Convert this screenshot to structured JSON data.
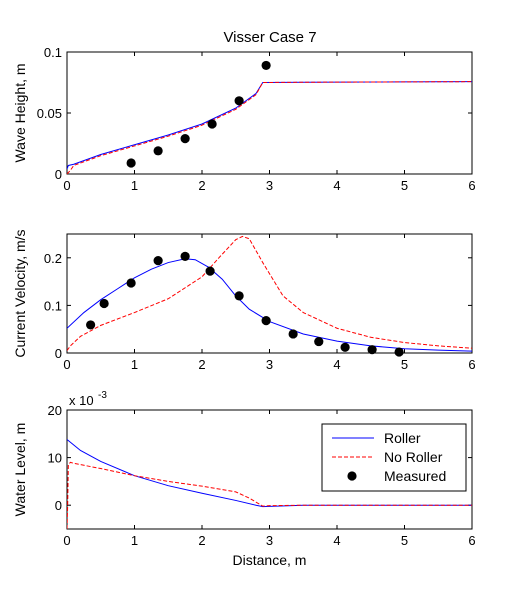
{
  "figure": {
    "title": "Visser Case 7"
  },
  "chart_data": [
    {
      "type": "line",
      "title": "Visser Case 7",
      "xlabel": "",
      "ylabel": "Wave Height, m",
      "xlim": [
        0,
        6
      ],
      "ylim": [
        0,
        0.1
      ],
      "xticks": [
        "0",
        "1",
        "2",
        "3",
        "4",
        "5",
        "6"
      ],
      "yticks": [
        "0",
        "0.05",
        "0.1"
      ],
      "grid": false,
      "series": [
        {
          "name": "Roller",
          "style": "solid",
          "color": "#0000ff",
          "x": [
            0,
            0.02,
            0.1,
            0.5,
            1.0,
            1.5,
            2.0,
            2.5,
            2.8,
            2.9,
            3.5,
            4.0,
            5.0,
            6.0
          ],
          "y": [
            0.004,
            0.007,
            0.008,
            0.016,
            0.024,
            0.032,
            0.041,
            0.054,
            0.066,
            0.075,
            0.0752,
            0.0753,
            0.0755,
            0.0757
          ]
        },
        {
          "name": "No Roller",
          "style": "dashed",
          "color": "#ff0000",
          "x": [
            0,
            0.05,
            0.1,
            0.5,
            1.0,
            1.5,
            2.0,
            2.5,
            2.8,
            2.9,
            3.5,
            4.0,
            5.0,
            6.0
          ],
          "y": [
            0.0,
            0.003,
            0.007,
            0.015,
            0.023,
            0.031,
            0.04,
            0.053,
            0.065,
            0.075,
            0.0752,
            0.0753,
            0.0755,
            0.0757
          ]
        },
        {
          "name": "Measured",
          "style": "marker",
          "color": "#000000",
          "x": [
            0.95,
            1.35,
            1.75,
            2.15,
            2.55,
            2.95
          ],
          "y": [
            0.009,
            0.019,
            0.029,
            0.041,
            0.06,
            0.089
          ]
        }
      ]
    },
    {
      "type": "line",
      "title": "",
      "xlabel": "",
      "ylabel": "Current Velocity, m/s",
      "xlim": [
        0,
        6
      ],
      "ylim": [
        0,
        0.25
      ],
      "xticks": [
        "0",
        "1",
        "2",
        "3",
        "4",
        "5",
        "6"
      ],
      "yticks": [
        "0",
        "0.1",
        "0.2"
      ],
      "grid": false,
      "series": [
        {
          "name": "Roller",
          "style": "solid",
          "color": "#0000ff",
          "x": [
            0,
            0.25,
            0.5,
            0.75,
            1.0,
            1.25,
            1.5,
            1.75,
            1.9,
            2.1,
            2.3,
            2.5,
            2.7,
            3.0,
            3.5,
            4.0,
            4.5,
            5.0,
            5.5,
            6.0
          ],
          "y": [
            0.052,
            0.085,
            0.112,
            0.135,
            0.158,
            0.176,
            0.19,
            0.198,
            0.196,
            0.18,
            0.155,
            0.12,
            0.092,
            0.066,
            0.04,
            0.025,
            0.015,
            0.009,
            0.006,
            0.004
          ]
        },
        {
          "name": "No Roller",
          "style": "dashed",
          "color": "#ff0000",
          "x": [
            0,
            0.05,
            0.2,
            0.5,
            1.0,
            1.5,
            2.0,
            2.25,
            2.5,
            2.6,
            2.7,
            2.9,
            3.2,
            3.5,
            4.0,
            4.5,
            5.0,
            5.5,
            6.0
          ],
          "y": [
            0.005,
            0.015,
            0.035,
            0.058,
            0.085,
            0.114,
            0.16,
            0.2,
            0.238,
            0.245,
            0.24,
            0.19,
            0.12,
            0.085,
            0.052,
            0.033,
            0.022,
            0.015,
            0.01
          ]
        },
        {
          "name": "Measured",
          "style": "marker",
          "color": "#000000",
          "x": [
            0.35,
            0.55,
            0.95,
            1.35,
            1.75,
            2.12,
            2.55,
            2.95,
            3.35,
            3.73,
            4.12,
            4.52,
            4.92
          ],
          "y": [
            0.059,
            0.104,
            0.147,
            0.194,
            0.203,
            0.172,
            0.12,
            0.068,
            0.04,
            0.024,
            0.012,
            0.007,
            0.002
          ]
        }
      ]
    },
    {
      "type": "line",
      "title": "",
      "xlabel": "Distance, m",
      "ylabel": "Water Level, m",
      "exponent_label": "x 10",
      "exponent_power": "-3",
      "xlim": [
        0,
        6
      ],
      "ylim": [
        -5,
        20
      ],
      "xticks": [
        "0",
        "1",
        "2",
        "3",
        "4",
        "5",
        "6"
      ],
      "yticks": [
        "0",
        "10",
        "20"
      ],
      "grid": false,
      "legend": {
        "placement": "top-right",
        "entries": [
          "Roller",
          "No Roller",
          "Measured"
        ]
      },
      "series": [
        {
          "name": "Roller",
          "style": "solid",
          "color": "#0000ff",
          "x": [
            0,
            0.2,
            0.5,
            1.0,
            1.5,
            2.0,
            2.5,
            2.8,
            2.9,
            3.5,
            4.0,
            5.0,
            6.0
          ],
          "y": [
            13.8,
            11.5,
            9.2,
            6.2,
            4.1,
            2.5,
            1.0,
            0.0,
            -0.3,
            0,
            0,
            0,
            0
          ]
        },
        {
          "name": "No Roller",
          "style": "dashed",
          "color": "#ff0000",
          "x": [
            0,
            0.01,
            0.02,
            0.05,
            0.1,
            0.5,
            1.0,
            1.5,
            2.0,
            2.5,
            2.7,
            2.9,
            3.0,
            3.5,
            4.0,
            5.0,
            6.0
          ],
          "y": [
            -5,
            0,
            8.5,
            9.0,
            8.8,
            7.7,
            6.2,
            5.0,
            4.0,
            2.8,
            1.5,
            -0.2,
            -0.1,
            0,
            0,
            0,
            0
          ]
        },
        {
          "name": "Measured",
          "style": "marker",
          "color": "#000000",
          "x": [],
          "y": []
        }
      ]
    }
  ]
}
